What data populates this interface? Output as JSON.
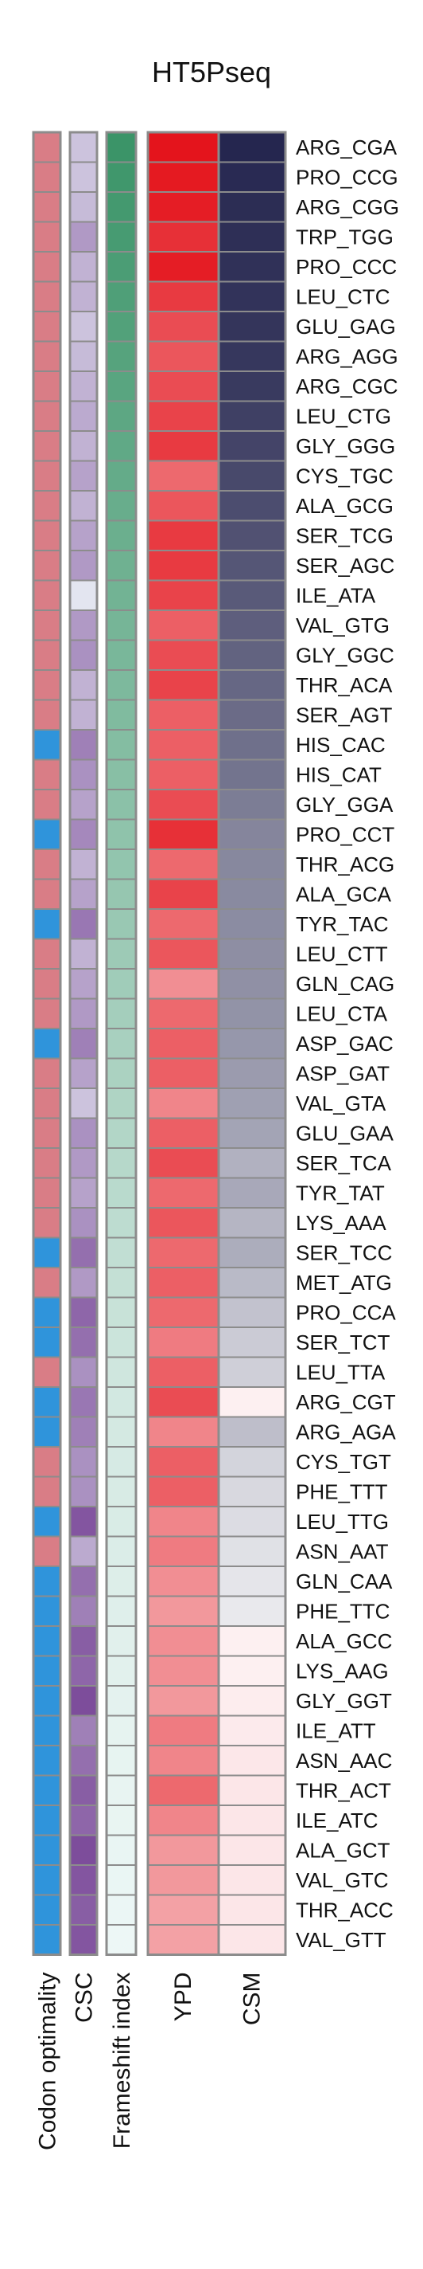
{
  "chart_data": {
    "type": "heatmap",
    "title": "HT5Pseq",
    "columns": [
      "Codon optimality",
      "CSC",
      "Frameshift index",
      "YPD",
      "CSM"
    ],
    "rows": [
      "ARG_CGA",
      "PRO_CCG",
      "ARG_CGG",
      "TRP_TGG",
      "PRO_CCC",
      "LEU_CTC",
      "GLU_GAG",
      "ARG_AGG",
      "ARG_CGC",
      "LEU_CTG",
      "GLY_GGG",
      "CYS_TGC",
      "ALA_GCG",
      "SER_TCG",
      "SER_AGC",
      "ILE_ATA",
      "VAL_GTG",
      "GLY_GGC",
      "THR_ACA",
      "SER_AGT",
      "HIS_CAC",
      "HIS_CAT",
      "GLY_GGA",
      "PRO_CCT",
      "THR_ACG",
      "ALA_GCA",
      "TYR_TAC",
      "LEU_CTT",
      "GLN_CAG",
      "LEU_CTA",
      "ASP_GAC",
      "ASP_GAT",
      "VAL_GTA",
      "GLU_GAA",
      "SER_TCA",
      "TYR_TAT",
      "LYS_AAA",
      "SER_TCC",
      "MET_ATG",
      "PRO_CCA",
      "SER_TCT",
      "LEU_TTA",
      "ARG_CGT",
      "ARG_AGA",
      "CYS_TGT",
      "PHE_TTT",
      "LEU_TTG",
      "ASN_AAT",
      "GLN_CAA",
      "PHE_TTC",
      "ALA_GCC",
      "LYS_AAG",
      "GLY_GGT",
      "ILE_ATT",
      "ASN_AAC",
      "THR_ACT",
      "ILE_ATC",
      "ALA_GCT",
      "VAL_GTC",
      "THR_ACC",
      "VAL_GTT"
    ],
    "codon_optimality": [
      "non-optimal",
      "non-optimal",
      "non-optimal",
      "non-optimal",
      "non-optimal",
      "non-optimal",
      "non-optimal",
      "non-optimal",
      "non-optimal",
      "non-optimal",
      "non-optimal",
      "non-optimal",
      "non-optimal",
      "non-optimal",
      "non-optimal",
      "non-optimal",
      "non-optimal",
      "non-optimal",
      "non-optimal",
      "non-optimal",
      "optimal",
      "non-optimal",
      "non-optimal",
      "optimal",
      "non-optimal",
      "non-optimal",
      "optimal",
      "non-optimal",
      "non-optimal",
      "non-optimal",
      "optimal",
      "non-optimal",
      "non-optimal",
      "non-optimal",
      "non-optimal",
      "non-optimal",
      "non-optimal",
      "optimal",
      "non-optimal",
      "optimal",
      "optimal",
      "non-optimal",
      "optimal",
      "optimal",
      "non-optimal",
      "non-optimal",
      "optimal",
      "non-optimal",
      "optimal",
      "optimal",
      "optimal",
      "optimal",
      "optimal",
      "optimal",
      "optimal",
      "optimal",
      "optimal",
      "optimal",
      "optimal",
      "optimal",
      "optimal"
    ],
    "csc": [
      0.3,
      0.3,
      0.35,
      0.55,
      0.4,
      0.4,
      0.3,
      0.35,
      0.4,
      0.45,
      0.4,
      0.5,
      0.4,
      0.5,
      0.55,
      0.1,
      0.55,
      0.6,
      0.4,
      0.4,
      0.7,
      0.6,
      0.5,
      0.65,
      0.4,
      0.5,
      0.75,
      0.4,
      0.5,
      0.55,
      0.7,
      0.5,
      0.3,
      0.6,
      0.55,
      0.5,
      0.6,
      0.8,
      0.55,
      0.85,
      0.8,
      0.6,
      0.75,
      0.7,
      0.6,
      0.6,
      0.95,
      0.45,
      0.8,
      0.7,
      0.9,
      0.85,
      1.0,
      0.7,
      0.8,
      0.9,
      0.85,
      1.0,
      0.95,
      0.9,
      0.95
    ],
    "frameshift_index": [
      1.0,
      0.97,
      0.95,
      0.93,
      0.91,
      0.89,
      0.87,
      0.85,
      0.83,
      0.81,
      0.79,
      0.77,
      0.75,
      0.73,
      0.71,
      0.69,
      0.67,
      0.65,
      0.63,
      0.61,
      0.59,
      0.57,
      0.55,
      0.53,
      0.51,
      0.49,
      0.47,
      0.45,
      0.43,
      0.41,
      0.39,
      0.37,
      0.35,
      0.33,
      0.31,
      0.29,
      0.27,
      0.25,
      0.23,
      0.21,
      0.19,
      0.17,
      0.15,
      0.14,
      0.13,
      0.12,
      0.11,
      0.1,
      0.09,
      0.08,
      0.07,
      0.06,
      0.05,
      0.04,
      0.035,
      0.03,
      0.025,
      0.02,
      0.015,
      0.01,
      0.0
    ],
    "ypd": [
      1.0,
      0.97,
      0.95,
      0.85,
      0.95,
      0.8,
      0.7,
      0.65,
      0.7,
      0.75,
      0.8,
      0.55,
      0.65,
      0.8,
      0.8,
      0.75,
      0.6,
      0.7,
      0.75,
      0.6,
      0.6,
      0.6,
      0.7,
      0.85,
      0.55,
      0.75,
      0.55,
      0.65,
      0.35,
      0.55,
      0.6,
      0.6,
      0.4,
      0.6,
      0.7,
      0.55,
      0.65,
      0.55,
      0.6,
      0.55,
      0.45,
      0.6,
      0.7,
      0.4,
      0.6,
      0.6,
      0.4,
      0.45,
      0.35,
      0.3,
      0.35,
      0.35,
      0.3,
      0.45,
      0.4,
      0.55,
      0.4,
      0.3,
      0.3,
      0.25,
      0.25
    ],
    "csm": [
      1.0,
      0.98,
      0.97,
      0.96,
      0.95,
      0.94,
      0.93,
      0.92,
      0.91,
      0.88,
      0.86,
      0.84,
      0.82,
      0.8,
      0.78,
      0.76,
      0.74,
      0.72,
      0.7,
      0.68,
      0.66,
      0.64,
      0.6,
      0.56,
      0.55,
      0.54,
      0.53,
      0.52,
      0.51,
      0.5,
      0.48,
      0.46,
      0.44,
      0.42,
      0.36,
      0.4,
      0.34,
      0.38,
      0.32,
      0.28,
      0.24,
      0.22,
      -0.1,
      0.3,
      0.2,
      0.18,
      0.16,
      0.14,
      0.12,
      0.1,
      -0.1,
      -0.1,
      -0.12,
      -0.14,
      -0.16,
      -0.18,
      -0.2,
      -0.22,
      -0.24,
      -0.26,
      -0.28
    ]
  },
  "colors": {
    "optimal": "#2f94db",
    "non_optimal": "#d97d86",
    "csc_low": "#eef6f9",
    "csc_high": "#7d4d9b",
    "frameshift_low": "#edf7f6",
    "frameshift_high": "#3b9468",
    "ypd_low": "#f8d0d3",
    "ypd_high": "#e4141c",
    "csm_neg": "#fce6e8",
    "csm_zero": "#ffffff",
    "csm_high": "#25264f",
    "border": "#8c8c8c"
  }
}
